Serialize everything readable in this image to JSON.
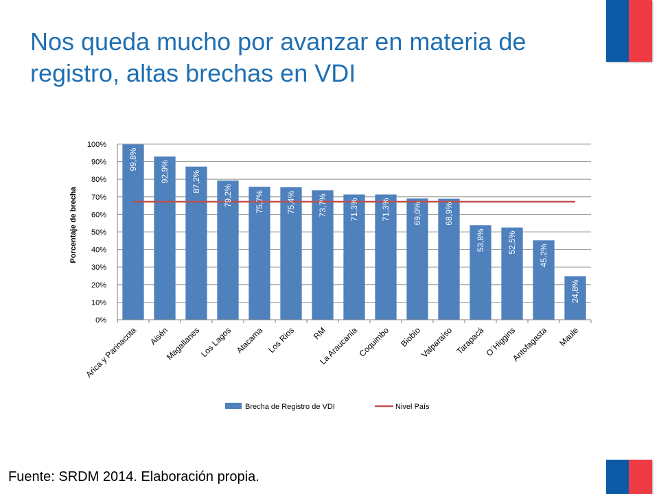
{
  "slide": {
    "title": "Nos queda mucho por avanzar en materia de registro, altas brechas en VDI",
    "source": "Fuente: SRDM 2014. Elaboración propia."
  },
  "colors": {
    "title": "#1f6fb2",
    "bar": "#4f81bd",
    "line": "#c0504d",
    "flag_blue": "#0c5aa6",
    "flag_red": "#ee3a43"
  },
  "chart_data": {
    "type": "bar",
    "title": "",
    "xlabel": "",
    "ylabel": "Porcentaje de brecha",
    "ylim": [
      0,
      100
    ],
    "yticks": [
      "0%",
      "10%",
      "20%",
      "30%",
      "40%",
      "50%",
      "60%",
      "70%",
      "80%",
      "90%",
      "100%"
    ],
    "grid": true,
    "legend_position": "bottom",
    "categories": [
      "Arica y Parinacota",
      "Aisén",
      "Magallanes",
      "Los Lagos",
      "Atacama",
      "Los Rios",
      "RM",
      "La Araucanía",
      "Coquimbo",
      "Biobío",
      "Valparaíso",
      "Tarapacá",
      "O´Higgins",
      "Antofagasta",
      "Maule"
    ],
    "series": [
      {
        "name": "Brecha de Registro de VDI",
        "type": "bar",
        "values": [
          99.8,
          92.9,
          87.2,
          79.2,
          75.7,
          75.4,
          73.7,
          71.3,
          71.3,
          69.0,
          68.9,
          53.8,
          52.5,
          45.2,
          24.8
        ],
        "labels": [
          "99,8%",
          "92,9%",
          "87,2%",
          "79,2%",
          "75,7%",
          "75,4%",
          "73,7%",
          "71,3%",
          "71,3%",
          "69,0%",
          "68,9%",
          "53,8%",
          "52,5%",
          "45,2%",
          "24,8%"
        ]
      },
      {
        "name": "Nivel País",
        "type": "line",
        "value": 67.2
      }
    ]
  }
}
